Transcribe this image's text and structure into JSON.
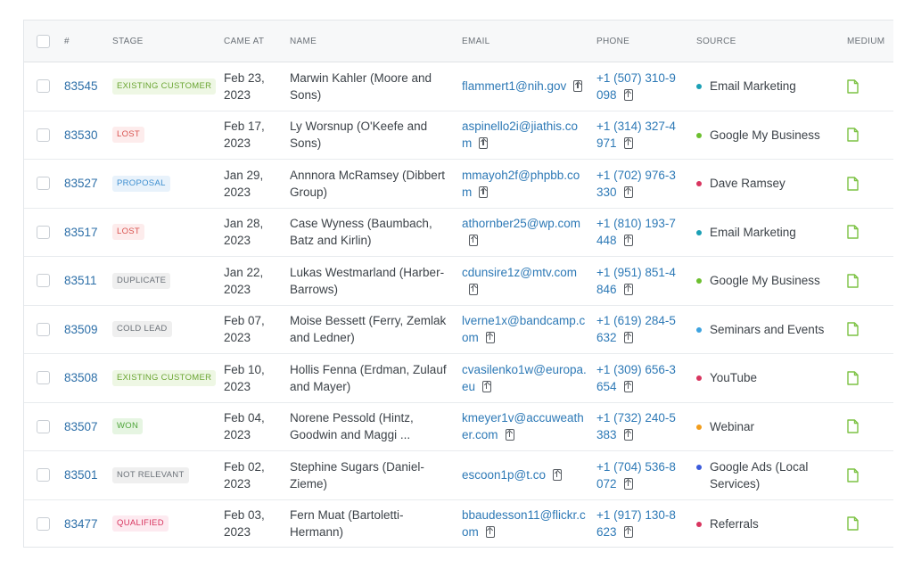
{
  "columns": {
    "number": "#",
    "stage": "STAGE",
    "came_at": "CAME AT",
    "name": "NAME",
    "email": "EMAIL",
    "phone": "PHONE",
    "source": "SOURCE",
    "medium": "MEDIUM"
  },
  "colors": {
    "medium_icon": "#7cc243"
  },
  "rows": [
    {
      "id": "83545",
      "stage": "EXISTING CUSTOMER",
      "stage_fg": "#6aa532",
      "stage_bg": "#eef7e4",
      "date": "Feb 23,",
      "year": "2023",
      "name": "Marwin Kahler (Moore and Sons)",
      "email": "flammert1@nih.gov",
      "phone": "+1 (507) 310-9098",
      "source": "Email Marketing",
      "source_color": "#1ba0b5"
    },
    {
      "id": "83530",
      "stage": "LOST",
      "stage_fg": "#d9534f",
      "stage_bg": "#fdecec",
      "date": "Feb 17,",
      "year": "2023",
      "name": "Ly Worsnup (O'Keefe and Sons)",
      "email": "aspinello2i@jiathis.com",
      "phone": "+1 (314) 327-4971",
      "source": "Google My Business",
      "source_color": "#6cbf2f"
    },
    {
      "id": "83527",
      "stage": "PROPOSAL",
      "stage_fg": "#3e8fd0",
      "stage_bg": "#e8f2fb",
      "date": "Jan 29,",
      "year": "2023",
      "name": "Annnora McRamsey (Dibbert Group)",
      "email": "mmayoh2f@phpbb.com",
      "phone": "+1 (702) 976-3330",
      "source": "Dave Ramsey",
      "source_color": "#d8355f"
    },
    {
      "id": "83517",
      "stage": "LOST",
      "stage_fg": "#d9534f",
      "stage_bg": "#fdecec",
      "date": "Jan 28,",
      "year": "2023",
      "name": "Case Wyness (Baumbach, Batz and Kirlin)",
      "email": "athornber25@wp.com",
      "phone": "+1 (810) 193-7448",
      "source": "Email Marketing",
      "source_color": "#1ba0b5"
    },
    {
      "id": "83511",
      "stage": "DUPLICATE",
      "stage_fg": "#6b7178",
      "stage_bg": "#efefef",
      "date": "Jan 22,",
      "year": "2023",
      "name": "Lukas Westmarland (Harber-Barrows)",
      "email": "cdunsire1z@mtv.com",
      "phone": "+1 (951) 851-4846",
      "source": "Google My Business",
      "source_color": "#6cbf2f"
    },
    {
      "id": "83509",
      "stage": "COLD LEAD",
      "stage_fg": "#6b7178",
      "stage_bg": "#efefef",
      "date": "Feb 07,",
      "year": "2023",
      "name": "Moise Bessett (Ferry, Zemlak and Ledner)",
      "email": "lverne1x@bandcamp.com",
      "phone": "+1 (619) 284-5632",
      "source": "Seminars and Events",
      "source_color": "#3ea3e0"
    },
    {
      "id": "83508",
      "stage": "EXISTING CUSTOMER",
      "stage_fg": "#6aa532",
      "stage_bg": "#eef7e4",
      "date": "Feb 10,",
      "year": "2023",
      "name": "Hollis Fenna (Erdman, Zulauf and Mayer)",
      "email": "cvasilenko1w@europa.eu",
      "phone": "+1 (309) 656-3654",
      "source": "YouTube",
      "source_color": "#d8355f"
    },
    {
      "id": "83507",
      "stage": "WON",
      "stage_fg": "#4ea53a",
      "stage_bg": "#e6f5e2",
      "date": "Feb 04,",
      "year": "2023",
      "name": "Norene Pessold (Hintz, Goodwin and Maggi ...",
      "email": "kmeyer1v@accuweather.com",
      "phone": "+1 (732) 240-5383",
      "source": "Webinar",
      "source_color": "#f29d1c"
    },
    {
      "id": "83501",
      "stage": "NOT RELEVANT",
      "stage_fg": "#6b7178",
      "stage_bg": "#efefef",
      "date": "Feb 02,",
      "year": "2023",
      "name": "Stephine Sugars (Daniel-Zieme)",
      "email": "escoon1p@t.co",
      "phone": "+1 (704) 536-8072",
      "source": "Google Ads (Local Services)",
      "source_color": "#3b5bdb"
    },
    {
      "id": "83477",
      "stage": "QUALIFIED",
      "stage_fg": "#d8355f",
      "stage_bg": "#fdeaf0",
      "date": "Feb 03,",
      "year": "2023",
      "name": "Fern Muat (Bartoletti-Hermann)",
      "email": "bbaudesson11@flickr.com",
      "phone": "+1 (917) 130-8623",
      "source": "Referrals",
      "source_color": "#d8355f"
    }
  ]
}
